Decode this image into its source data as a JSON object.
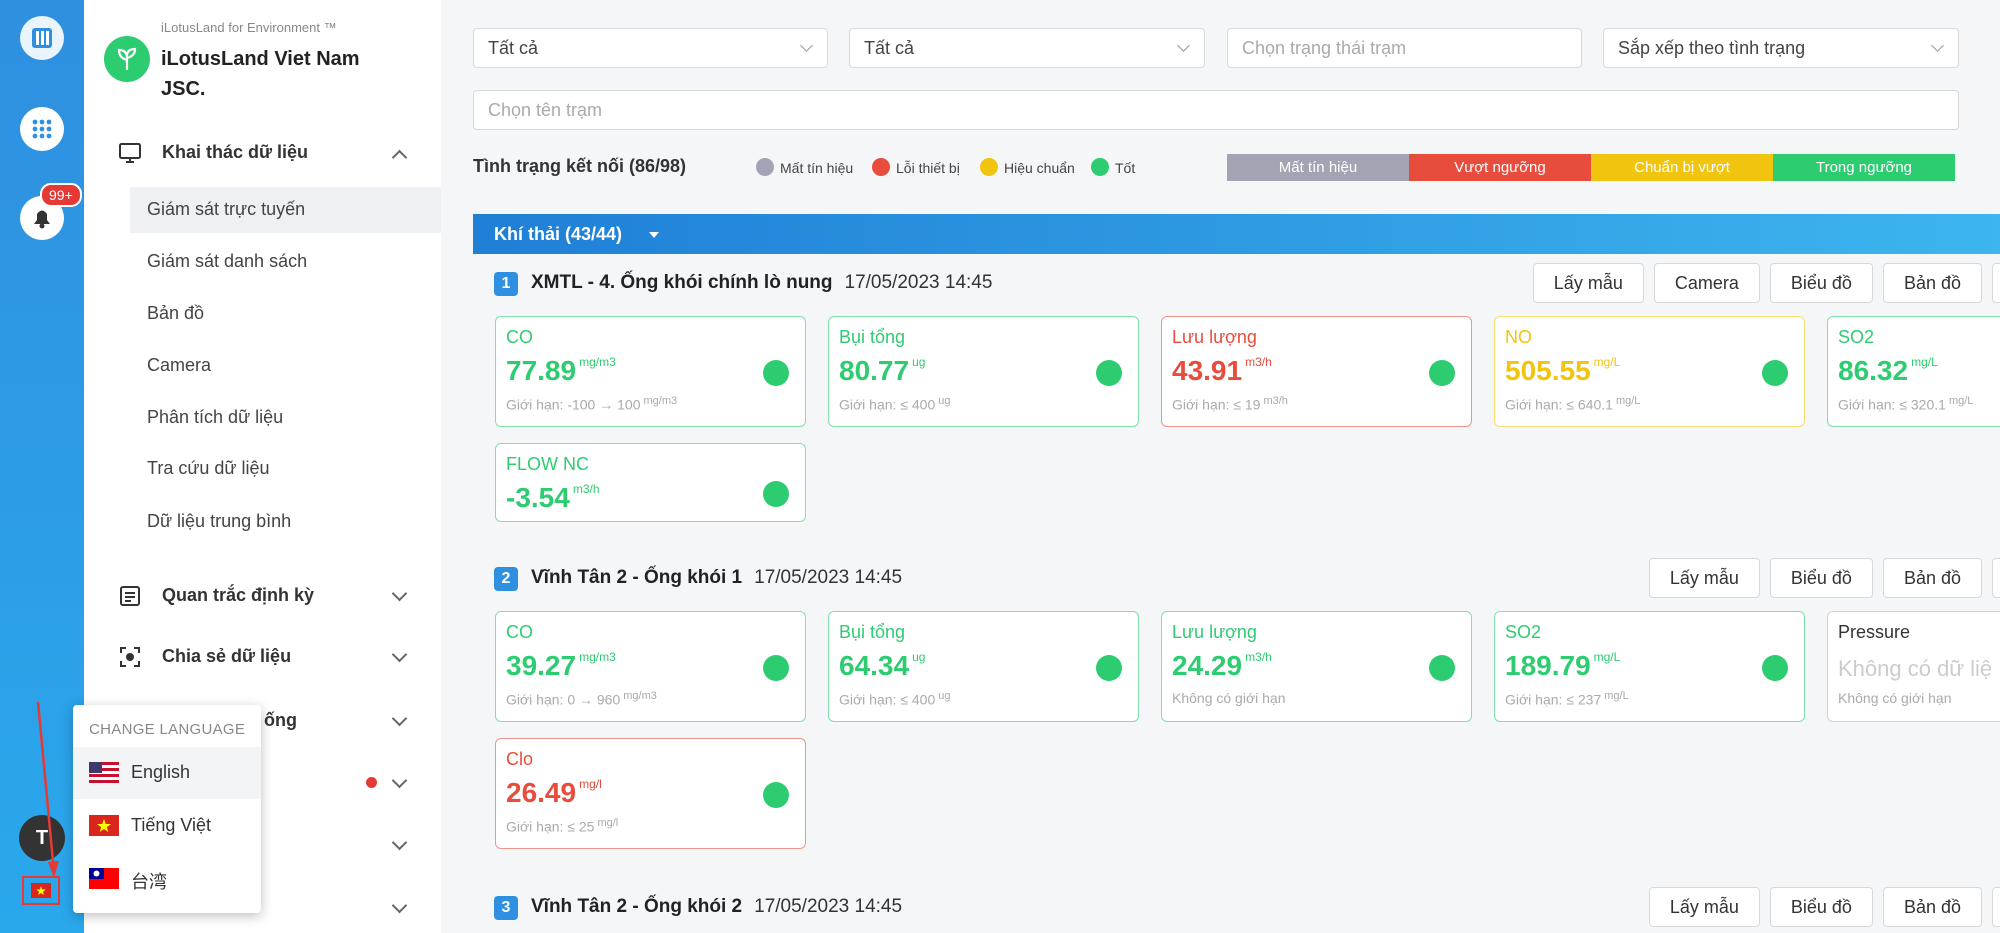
{
  "app": {
    "tagline": "iLotusLand for Environment ™",
    "company": "iLotusLand Viet Nam JSC.",
    "badge": "99+",
    "avatar": "T"
  },
  "menu": {
    "sections": [
      {
        "label": "Khai thác dữ liệu",
        "items": [
          "Giám sát trực tuyến",
          "Giám sát danh sách",
          "Bản đồ",
          "Camera",
          "Phân tích dữ liệu",
          "Tra cứu dữ liệu",
          "Dữ liệu trung bình"
        ]
      },
      {
        "label": "Quan trắc định kỳ"
      },
      {
        "label": "Chia sẻ dữ liệu"
      },
      {
        "label": "ống"
      }
    ]
  },
  "language_menu": {
    "title": "CHANGE LANGUAGE",
    "options": [
      "English",
      "Tiếng Việt",
      "台湾"
    ]
  },
  "filters": {
    "type": "Tất cả",
    "area": "Tất cả",
    "status": "Chọn trạng thái trạm",
    "sort": "Sắp xếp theo tình trạng",
    "station": "Chọn tên trạm"
  },
  "connection": {
    "label": "Tình trạng kết nối (86/98)",
    "legend": [
      {
        "name": "Mất tín hiệu",
        "color": "#a3a3b8"
      },
      {
        "name": "Lỗi thiết bị",
        "color": "#e74c3c"
      },
      {
        "name": "Hiệu chuẩn",
        "color": "#f1c40f"
      },
      {
        "name": "Tốt",
        "color": "#2ecc71"
      }
    ],
    "scale": [
      {
        "name": "Mất tín hiệu",
        "color": "#a3a3b3"
      },
      {
        "name": "Vượt ngưỡng",
        "color": "#e74c3c"
      },
      {
        "name": "Chuẩn bị vượt",
        "color": "#f1c40f"
      },
      {
        "name": "Trong ngưỡng",
        "color": "#2ecc71"
      }
    ]
  },
  "group": {
    "label": "Khí thải (43/44)"
  },
  "stations": [
    {
      "index": "1",
      "name": "XMTL - 4. Ống khói chính lò nung",
      "time": "17/05/2023 14:45",
      "buttons": [
        "Lấy mẫu",
        "Camera",
        "Biểu đồ",
        "Bản đồ"
      ],
      "params": [
        {
          "name": "CO",
          "value": "77.89",
          "unit": "mg/m3",
          "limit": "Giới hạn: -100 → 100",
          "limit_unit": "mg/m3",
          "color": "#2ecc71"
        },
        {
          "name": "Bụi tổng",
          "value": "80.77",
          "unit": "ug",
          "limit": "Giới hạn: ≤ 400",
          "limit_unit": "ug",
          "color": "#2ecc71"
        },
        {
          "name": "Lưu lượng",
          "value": "43.91",
          "unit": "m3/h",
          "limit": "Giới hạn: ≤ 19",
          "limit_unit": "m3/h",
          "color": "#e74c3c"
        },
        {
          "name": "NO",
          "value": "505.55",
          "unit": "mg/L",
          "limit": "Giới hạn: ≤ 640.1",
          "limit_unit": "mg/L",
          "color": "#f1c40f"
        },
        {
          "name": "SO2",
          "value": "86.32",
          "unit": "mg/L",
          "limit": "Giới hạn: ≤ 320.1",
          "limit_unit": "mg/L",
          "color": "#2ecc71"
        },
        {
          "name": "FLOW NC",
          "value": "-3.54",
          "unit": "m3/h",
          "color": "#2ecc71"
        }
      ]
    },
    {
      "index": "2",
      "name": "Vĩnh Tân 2 - Ống khói 1",
      "time": "17/05/2023 14:45",
      "buttons": [
        "Lấy mẫu",
        "Biểu đồ",
        "Bản đồ"
      ],
      "params": [
        {
          "name": "CO",
          "value": "39.27",
          "unit": "mg/m3",
          "limit": "Giới hạn: 0 → 960",
          "limit_unit": "mg/m3",
          "color": "#2ecc71"
        },
        {
          "name": "Bụi tổng",
          "value": "64.34",
          "unit": "ug",
          "limit": "Giới hạn: ≤ 400",
          "limit_unit": "ug",
          "color": "#2ecc71"
        },
        {
          "name": "Lưu lượng",
          "value": "24.29",
          "unit": "m3/h",
          "limit": "Không có giới hạn",
          "color": "#2ecc71"
        },
        {
          "name": "SO2",
          "value": "189.79",
          "unit": "mg/L",
          "limit": "Giới hạn: ≤ 237",
          "limit_unit": "mg/L",
          "color": "#2ecc71"
        },
        {
          "name": "Pressure",
          "value": "Không có dữ liệ",
          "limit": "Không có giới hạn",
          "color": "#b5b5b5"
        },
        {
          "name": "Clo",
          "value": "26.49",
          "unit": "mg/l",
          "limit": "Giới hạn: ≤ 25",
          "limit_unit": "mg/l",
          "color": "#e74c3c"
        }
      ]
    },
    {
      "index": "3",
      "name": "Vĩnh Tân 2 - Ống khói 2",
      "time": "17/05/2023 14:45",
      "buttons": [
        "Lấy mẫu",
        "Biểu đồ",
        "Bản đồ"
      ],
      "params": []
    }
  ]
}
